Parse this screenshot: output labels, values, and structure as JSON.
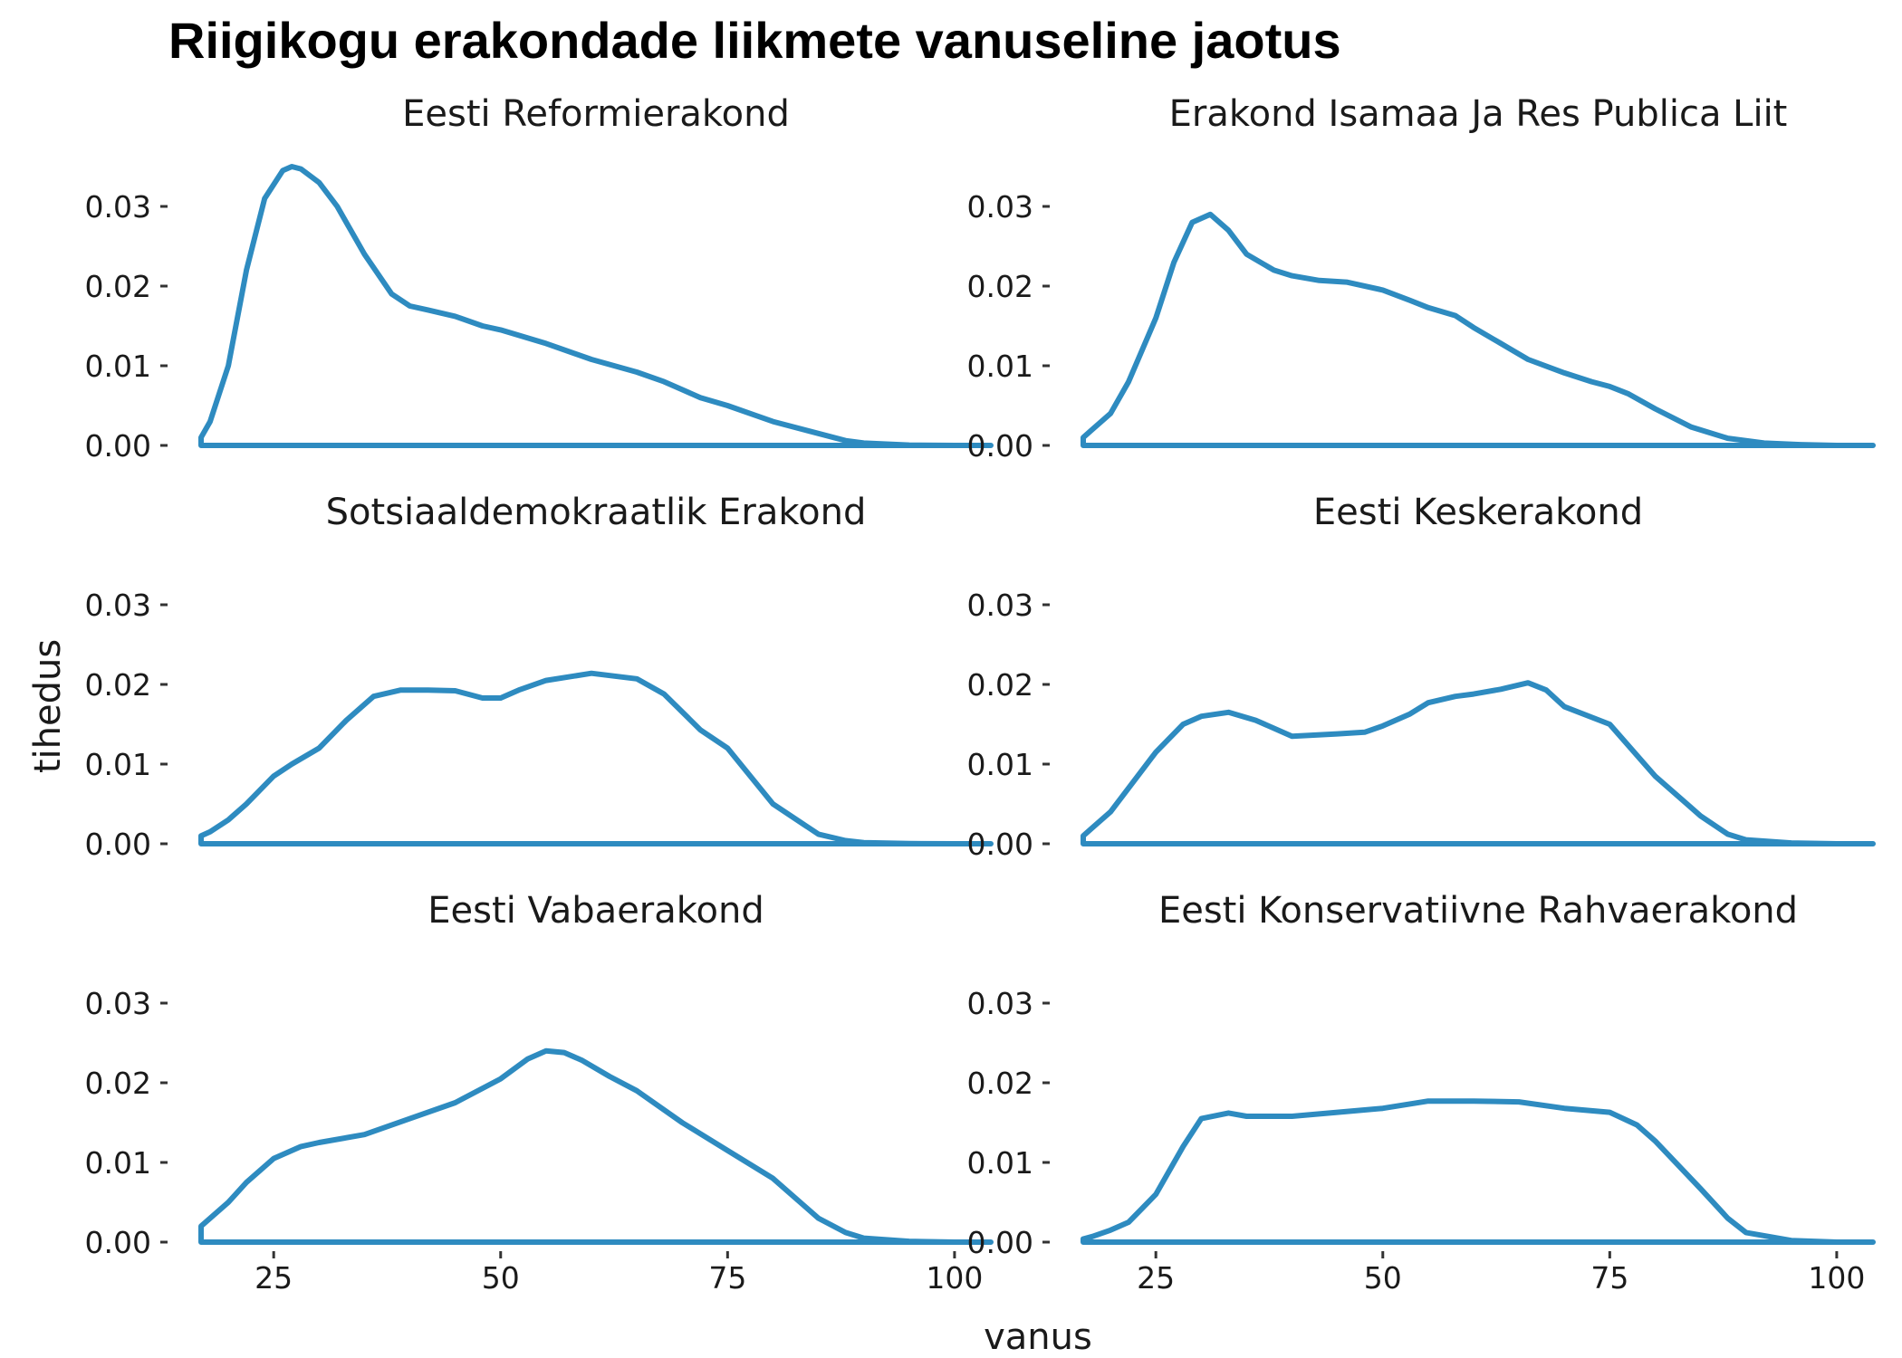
{
  "chart_data": {
    "type": "area",
    "title": "Riigikogu erakondade liikmete vanuseline jaotus",
    "xlabel": "vanus",
    "ylabel": "tihedus",
    "xlim": [
      17,
      104
    ],
    "ylim": [
      0,
      0.035
    ],
    "x_ticks": [
      25,
      50,
      75,
      100
    ],
    "y_ticks": [
      0.0,
      0.01,
      0.02,
      0.03
    ],
    "y_tick_labels": [
      "0.00",
      "0.01",
      "0.02",
      "0.03"
    ],
    "grid": false,
    "line_color": "#2E8BC0",
    "panels": [
      {
        "title": "Eesti Reformierakond",
        "x": [
          17,
          18,
          20,
          22,
          24,
          26,
          27,
          28,
          30,
          32,
          35,
          38,
          40,
          42,
          45,
          48,
          50,
          55,
          60,
          65,
          68,
          70,
          72,
          75,
          78,
          80,
          85,
          88,
          90,
          95,
          100,
          104
        ],
        "y": [
          0.001,
          0.003,
          0.01,
          0.022,
          0.031,
          0.0345,
          0.035,
          0.0347,
          0.033,
          0.03,
          0.024,
          0.019,
          0.0175,
          0.017,
          0.0162,
          0.015,
          0.0145,
          0.0128,
          0.0108,
          0.0092,
          0.008,
          0.007,
          0.006,
          0.005,
          0.0038,
          0.003,
          0.0015,
          0.0006,
          0.0003,
          5e-05,
          0.0,
          0.0
        ]
      },
      {
        "title": "Erakond Isamaa Ja Res Publica Liit",
        "x": [
          17,
          18,
          20,
          22,
          25,
          27,
          29,
          31,
          33,
          35,
          38,
          40,
          43,
          46,
          50,
          53,
          55,
          58,
          60,
          63,
          66,
          70,
          73,
          75,
          77,
          80,
          84,
          88,
          92,
          96,
          100,
          104
        ],
        "y": [
          0.001,
          0.002,
          0.004,
          0.008,
          0.016,
          0.023,
          0.028,
          0.029,
          0.027,
          0.024,
          0.022,
          0.0213,
          0.0207,
          0.0205,
          0.0195,
          0.0182,
          0.0173,
          0.0163,
          0.0148,
          0.0128,
          0.0108,
          0.0091,
          0.008,
          0.0074,
          0.0065,
          0.0046,
          0.0023,
          0.0009,
          0.0003,
          0.0001,
          0.0,
          0.0
        ]
      },
      {
        "title": "Sotsiaaldemokraatlik Erakond",
        "x": [
          17,
          18,
          20,
          22,
          25,
          27,
          30,
          33,
          36,
          39,
          42,
          45,
          48,
          50,
          52,
          55,
          60,
          65,
          68,
          72,
          75,
          80,
          85,
          88,
          90,
          95,
          100,
          104
        ],
        "y": [
          0.001,
          0.0015,
          0.003,
          0.005,
          0.0085,
          0.01,
          0.012,
          0.0155,
          0.0185,
          0.0193,
          0.0193,
          0.0192,
          0.0183,
          0.0183,
          0.0193,
          0.0205,
          0.0214,
          0.0207,
          0.0188,
          0.0143,
          0.012,
          0.005,
          0.0012,
          0.0004,
          0.00015,
          2e-05,
          0.0,
          0.0
        ]
      },
      {
        "title": "Eesti Keskerakond",
        "x": [
          17,
          18,
          20,
          22,
          25,
          28,
          30,
          33,
          36,
          40,
          45,
          48,
          50,
          53,
          55,
          58,
          60,
          63,
          66,
          68,
          70,
          75,
          80,
          85,
          88,
          90,
          95,
          100,
          104
        ],
        "y": [
          0.001,
          0.002,
          0.004,
          0.007,
          0.0115,
          0.015,
          0.016,
          0.0165,
          0.0155,
          0.0135,
          0.0138,
          0.014,
          0.0148,
          0.0163,
          0.0177,
          0.0185,
          0.0188,
          0.0194,
          0.0202,
          0.0193,
          0.0172,
          0.015,
          0.0085,
          0.0035,
          0.0012,
          0.0005,
          0.0001,
          0.0,
          0.0
        ]
      },
      {
        "title": "Eesti Vabaerakond",
        "x": [
          17,
          18,
          20,
          22,
          25,
          28,
          30,
          35,
          40,
          45,
          50,
          53,
          55,
          57,
          59,
          62,
          65,
          70,
          75,
          80,
          85,
          88,
          90,
          95,
          100,
          104
        ],
        "y": [
          0.002,
          0.003,
          0.005,
          0.0075,
          0.0105,
          0.012,
          0.0125,
          0.0135,
          0.0155,
          0.0175,
          0.0205,
          0.023,
          0.024,
          0.0238,
          0.0228,
          0.0208,
          0.019,
          0.015,
          0.0115,
          0.008,
          0.003,
          0.0012,
          0.0005,
          0.0001,
          0.0,
          0.0
        ]
      },
      {
        "title": "Eesti Konservatiivne Rahvaerakond",
        "x": [
          17,
          18,
          20,
          22,
          25,
          28,
          30,
          33,
          35,
          40,
          45,
          50,
          55,
          60,
          65,
          70,
          75,
          78,
          80,
          85,
          88,
          90,
          95,
          100,
          104
        ],
        "y": [
          0.0004,
          0.0007,
          0.0015,
          0.0025,
          0.006,
          0.012,
          0.0155,
          0.0162,
          0.0158,
          0.0158,
          0.0163,
          0.0168,
          0.0177,
          0.0177,
          0.0176,
          0.0168,
          0.0163,
          0.0147,
          0.0127,
          0.0067,
          0.003,
          0.0012,
          0.0002,
          0.0,
          0.0
        ]
      }
    ]
  }
}
